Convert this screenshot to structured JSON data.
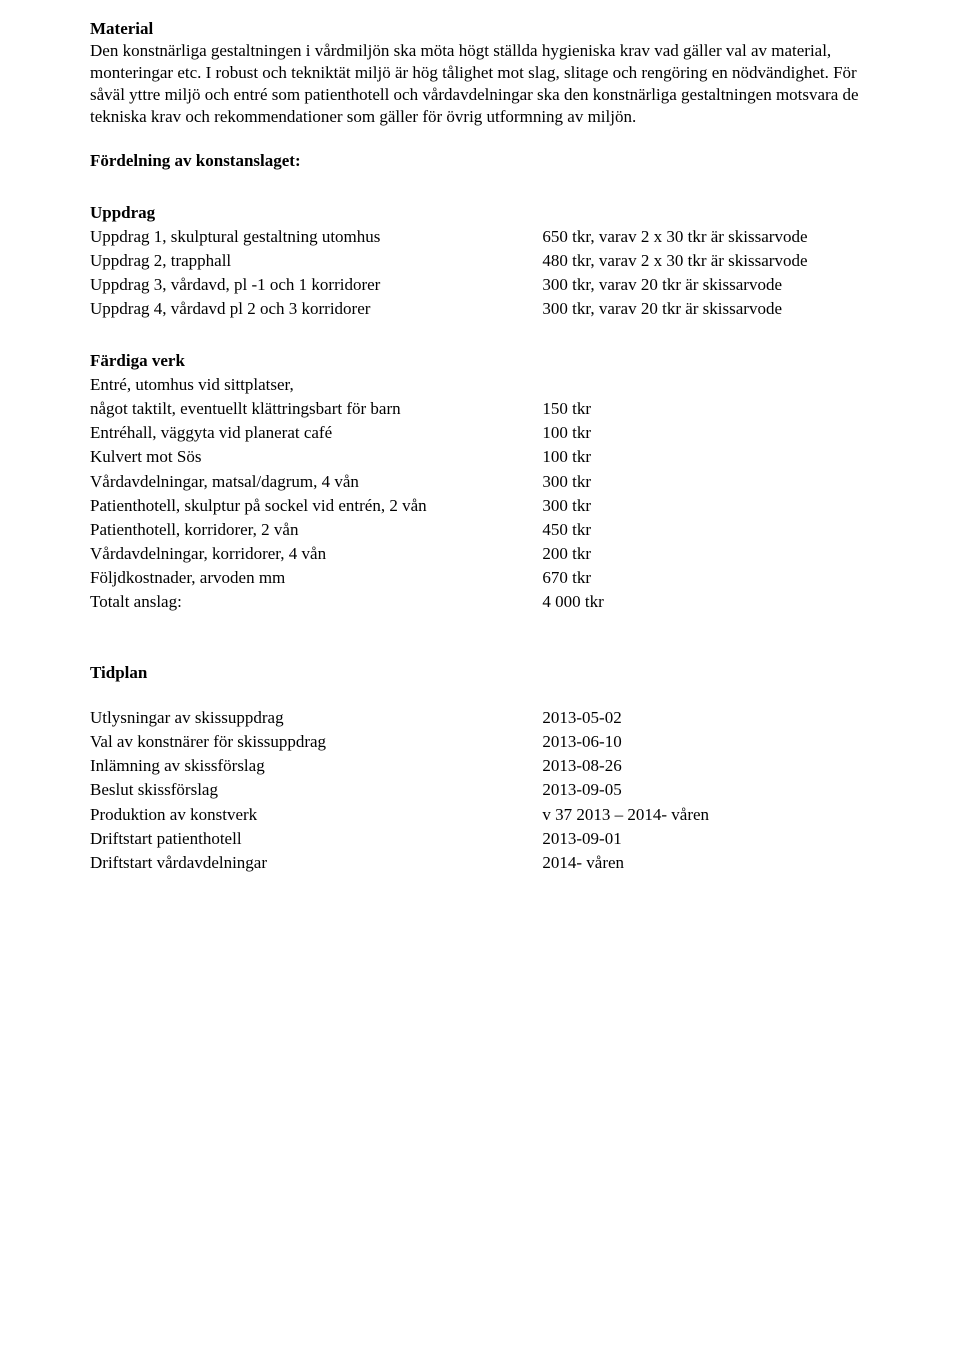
{
  "material": {
    "heading": "Material",
    "body": "Den konstnärliga gestaltningen i vårdmiljön ska möta högt ställda hygieniska krav vad gäller val av material, monteringar etc. I robust och tekniktät miljö är hög tålighet mot slag, slitage och rengöring en nödvändighet. För såväl yttre miljö och entré som patienthotell och vårdavdelningar ska den konstnärliga gestaltningen motsvara de tekniska krav och rekommendationer som gäller för övrig utformning av miljön."
  },
  "fordelning_heading": "Fördelning av konstanslaget:",
  "uppdrag": {
    "heading": "Uppdrag",
    "rows": [
      {
        "label": "Uppdrag 1, skulptural gestaltning utomhus",
        "value": "650 tkr, varav 2 x 30 tkr är skissarvode"
      },
      {
        "label": "Uppdrag 2, trapphall",
        "value": "480 tkr, varav 2 x 30 tkr är skissarvode"
      },
      {
        "label": "Uppdrag 3, vårdavd, pl -1 och 1 korridorer",
        "value": "300 tkr, varav 20 tkr är skissarvode"
      },
      {
        "label": "Uppdrag 4, vårdavd pl 2 och 3 korridorer",
        "value": "300 tkr, varav 20 tkr är skissarvode"
      }
    ]
  },
  "fardiga": {
    "heading": "Färdiga verk",
    "lead_line1": "Entré, utomhus vid sittplatser,",
    "rows": [
      {
        "label": "något taktilt, eventuellt klättringsbart för barn",
        "value": "150 tkr"
      },
      {
        "label": "Entréhall, väggyta vid planerat café",
        "value": "100 tkr"
      },
      {
        "label": "Kulvert mot Sös",
        "value": "100 tkr"
      },
      {
        "label": "Vårdavdelningar, matsal/dagrum, 4 vån",
        "value": "300 tkr"
      },
      {
        "label": "Patienthotell, skulptur på sockel vid entrén, 2 vån",
        "value": "300 tkr"
      },
      {
        "label": "Patienthotell, korridorer, 2 vån",
        "value": "450 tkr"
      },
      {
        "label": "Vårdavdelningar, korridorer, 4 vån",
        "value": "200 tkr"
      },
      {
        "label": "Följdkostnader, arvoden mm",
        "value": "670 tkr"
      }
    ],
    "total_label": "Totalt anslag:",
    "total_value": "4 000 tkr"
  },
  "tidplan": {
    "heading": "Tidplan",
    "rows": [
      {
        "label": "Utlysningar av skissuppdrag",
        "value": "2013-05-02"
      },
      {
        "label": "Val av konstnärer för skissuppdrag",
        "value": "2013-06-10"
      },
      {
        "label": "Inlämning av skissförslag",
        "value": "2013-08-26"
      },
      {
        "label": "Beslut skissförslag",
        "value": "2013-09-05"
      },
      {
        "label": "Produktion av konstverk",
        "value": "v 37 2013 – 2014- våren"
      },
      {
        "label": "Driftstart patienthotell",
        "value": "2013-09-01"
      },
      {
        "label": "Driftstart vårdavdelningar",
        "value": "2014- våren"
      }
    ]
  }
}
